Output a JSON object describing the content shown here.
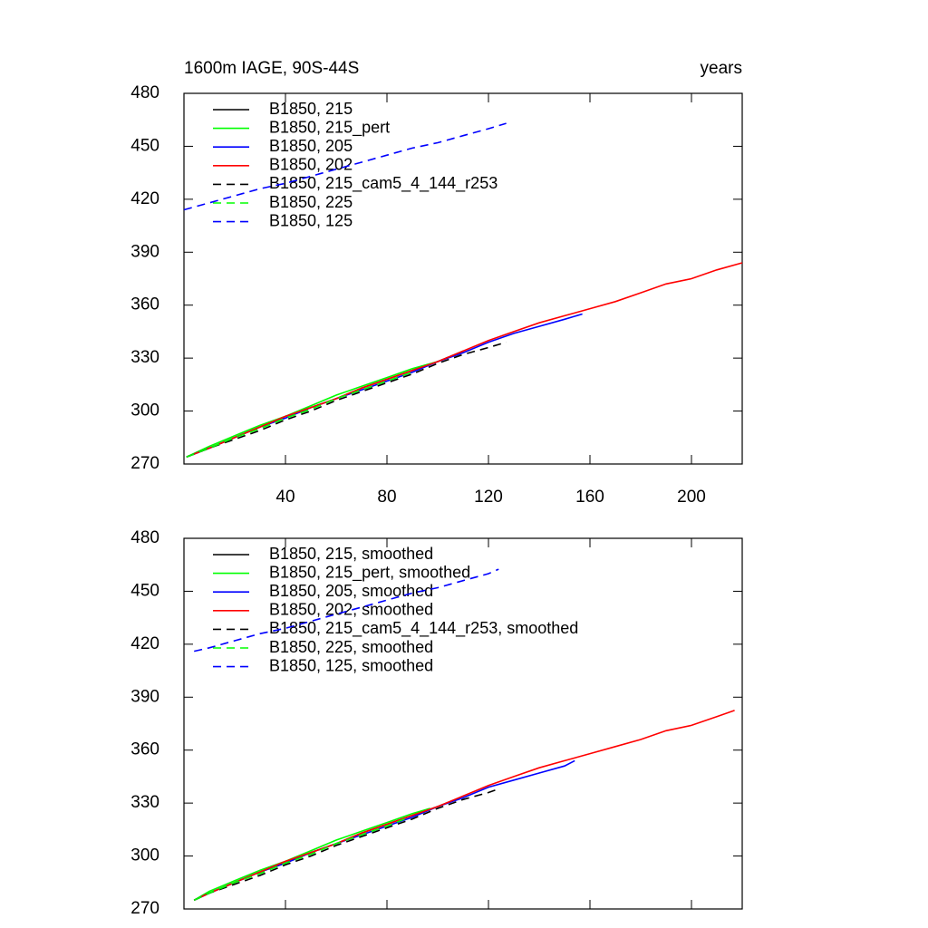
{
  "chart_data": [
    {
      "type": "line",
      "title": "1600m IAGE, 90S-44S",
      "xlabel": "years",
      "xlim": [
        0,
        220
      ],
      "xticks": [
        40,
        80,
        120,
        160,
        200
      ],
      "ylim": [
        270,
        480
      ],
      "yticks": [
        270,
        300,
        330,
        360,
        390,
        420,
        450,
        480
      ],
      "legend": "upper left",
      "series": [
        {
          "name": "B1850, 215",
          "color": "#000000",
          "dash": false,
          "x": [
            1,
            10,
            20,
            30,
            40,
            50,
            60,
            70,
            80,
            90,
            100,
            110
          ],
          "values": [
            274,
            279,
            285,
            291,
            297,
            302,
            307,
            313,
            318,
            323,
            328,
            334
          ]
        },
        {
          "name": "B1850, 215_pert",
          "color": "#00ff00",
          "dash": false,
          "x": [
            1,
            10,
            20,
            30,
            40,
            50,
            60,
            70,
            80,
            90,
            100
          ],
          "values": [
            274,
            280,
            286,
            292,
            297,
            303,
            309,
            314,
            319,
            324,
            328
          ]
        },
        {
          "name": "B1850, 205",
          "color": "#0000ff",
          "dash": false,
          "x": [
            1,
            10,
            20,
            30,
            40,
            50,
            60,
            70,
            80,
            90,
            100,
            110,
            120,
            130,
            140,
            150,
            157
          ],
          "values": [
            274,
            279,
            285,
            291,
            296,
            302,
            307,
            312,
            317,
            322,
            328,
            333,
            339,
            344,
            348,
            352,
            355
          ]
        },
        {
          "name": "B1850, 202",
          "color": "#ff0000",
          "dash": false,
          "x": [
            1,
            10,
            20,
            30,
            40,
            50,
            60,
            70,
            80,
            90,
            100,
            110,
            120,
            130,
            140,
            150,
            160,
            170,
            180,
            190,
            200,
            210,
            220
          ],
          "values": [
            274,
            279,
            285,
            291,
            297,
            302,
            307,
            313,
            318,
            323,
            328,
            334,
            340,
            345,
            350,
            354,
            358,
            362,
            367,
            372,
            375,
            380,
            384
          ]
        },
        {
          "name": "B1850, 215_cam5_4_144_r253",
          "color": "#000000",
          "dash": true,
          "x": [
            1,
            10,
            20,
            30,
            40,
            50,
            60,
            70,
            80,
            90,
            100,
            110,
            120,
            127
          ],
          "values": [
            274,
            279,
            284,
            289,
            295,
            300,
            306,
            311,
            316,
            321,
            327,
            332,
            336,
            339
          ]
        },
        {
          "name": "B1850, 225",
          "color": "#00ff00",
          "dash": true,
          "x": [
            1,
            10,
            20,
            30,
            40,
            50,
            60,
            70,
            80,
            90
          ],
          "values": [
            274,
            279,
            285,
            290,
            296,
            301,
            307,
            312,
            317,
            322
          ]
        },
        {
          "name": "B1850, 125",
          "color": "#0000ff",
          "dash": true,
          "x": [
            0,
            10,
            20,
            30,
            40,
            50,
            60,
            70,
            80,
            90,
            100,
            110,
            120,
            127
          ],
          "values": [
            414,
            418,
            422,
            426,
            429,
            433,
            437,
            441,
            445,
            449,
            452,
            456,
            460,
            463
          ]
        }
      ]
    },
    {
      "type": "line",
      "xlim": [
        0,
        220
      ],
      "xticks": [
        40,
        80,
        120,
        160,
        200
      ],
      "ylim": [
        270,
        480
      ],
      "yticks": [
        270,
        300,
        330,
        360,
        390,
        420,
        450,
        480
      ],
      "legend": "upper left",
      "series": [
        {
          "name": "B1850, 215, smoothed",
          "color": "#000000",
          "dash": false,
          "x": [
            4,
            10,
            20,
            30,
            40,
            50,
            60,
            70,
            80,
            90,
            100,
            107
          ],
          "values": [
            275,
            279,
            285,
            291,
            296,
            302,
            307,
            313,
            318,
            323,
            328,
            332
          ]
        },
        {
          "name": "B1850, 215_pert, smoothed",
          "color": "#00ff00",
          "dash": false,
          "x": [
            4,
            10,
            20,
            30,
            40,
            50,
            60,
            70,
            80,
            90,
            97
          ],
          "values": [
            275,
            280,
            286,
            292,
            297,
            303,
            309,
            314,
            319,
            324,
            327
          ]
        },
        {
          "name": "B1850, 205, smoothed",
          "color": "#0000ff",
          "dash": false,
          "x": [
            4,
            10,
            20,
            30,
            40,
            50,
            60,
            70,
            80,
            90,
            100,
            110,
            120,
            130,
            140,
            150,
            154
          ],
          "values": [
            275,
            279,
            285,
            291,
            296,
            302,
            307,
            312,
            317,
            322,
            328,
            333,
            339,
            343,
            347,
            351,
            354
          ]
        },
        {
          "name": "B1850, 202, smoothed",
          "color": "#ff0000",
          "dash": false,
          "x": [
            4,
            10,
            20,
            30,
            40,
            50,
            60,
            70,
            80,
            90,
            100,
            110,
            120,
            130,
            140,
            150,
            160,
            170,
            180,
            190,
            200,
            210,
            217
          ],
          "values": [
            275,
            279,
            285,
            291,
            297,
            302,
            307,
            313,
            318,
            323,
            328,
            334,
            340,
            345,
            350,
            354,
            358,
            362,
            366,
            371,
            374,
            379,
            382.5
          ]
        },
        {
          "name": "B1850, 215_cam5_4_144_r253, smoothed",
          "color": "#000000",
          "dash": true,
          "x": [
            4,
            10,
            20,
            30,
            40,
            50,
            60,
            70,
            80,
            90,
            100,
            110,
            120,
            124
          ],
          "values": [
            275,
            279,
            284,
            289,
            295,
            300,
            306,
            311,
            316,
            321,
            327,
            332,
            336,
            338
          ]
        },
        {
          "name": "B1850, 225, smoothed",
          "color": "#00ff00",
          "dash": true,
          "x": [
            4,
            10,
            20,
            30,
            40,
            50,
            60,
            70,
            80,
            87
          ],
          "values": [
            275,
            279,
            285,
            290,
            296,
            301,
            307,
            312,
            317,
            321
          ]
        },
        {
          "name": "B1850, 125, smoothed",
          "color": "#0000ff",
          "dash": true,
          "x": [
            4,
            10,
            20,
            30,
            40,
            50,
            60,
            70,
            80,
            90,
            100,
            110,
            120,
            124
          ],
          "values": [
            416,
            418,
            422,
            426,
            429,
            433,
            437,
            441,
            445,
            449,
            452,
            456,
            460,
            462.5
          ]
        }
      ]
    }
  ]
}
